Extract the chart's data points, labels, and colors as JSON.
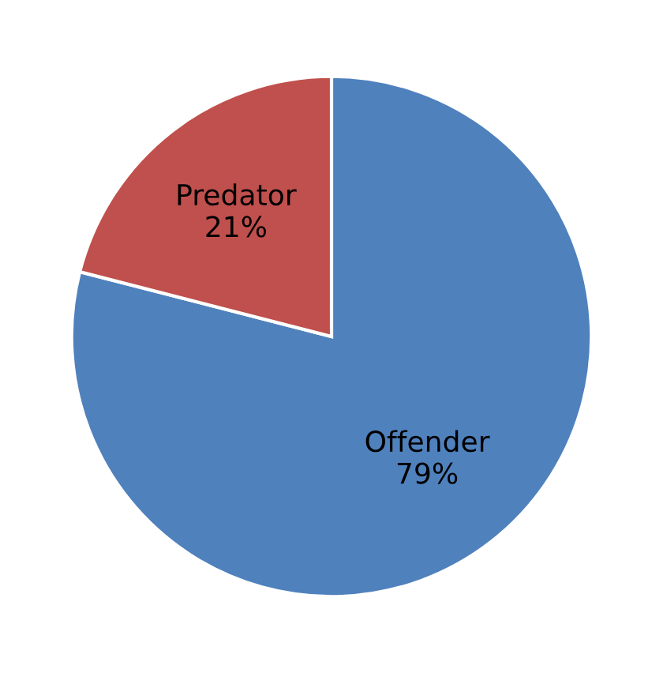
{
  "chart_data": {
    "type": "pie",
    "categories": [
      "Offender",
      "Predator"
    ],
    "values": [
      79,
      21
    ],
    "value_labels": [
      "79%",
      "21%"
    ],
    "colors": [
      "#4f81bd",
      "#c0504d"
    ]
  }
}
